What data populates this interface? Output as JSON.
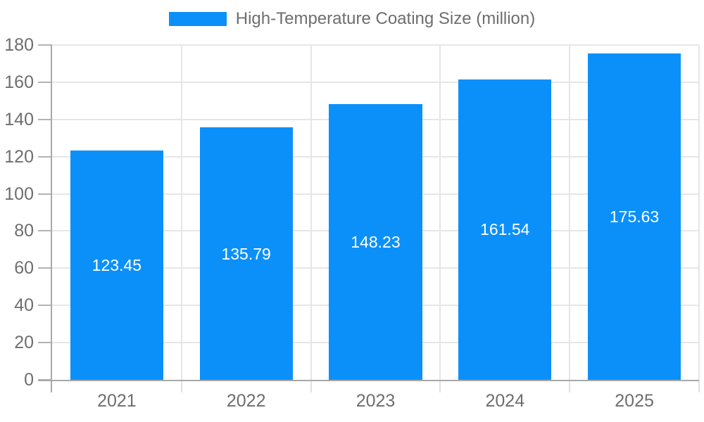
{
  "chart_data": {
    "type": "bar",
    "legend": "High-Temperature Coating Size (million)",
    "legend_position": "top",
    "categories": [
      "2021",
      "2022",
      "2023",
      "2024",
      "2025"
    ],
    "values": [
      123.45,
      135.79,
      148.23,
      161.54,
      175.63
    ],
    "value_labels": [
      "123.45",
      "135.79",
      "148.23",
      "161.54",
      "175.63"
    ],
    "title": "",
    "xlabel": "",
    "ylabel": "",
    "ylim": [
      0,
      180
    ],
    "yticks": [
      0,
      20,
      40,
      60,
      80,
      100,
      120,
      140,
      160,
      180
    ],
    "grid": true,
    "colors": {
      "bar": "#0b90fa",
      "grid": "#e6e6e6",
      "axis": "#a8a8a8",
      "y_tick": "#b3b3b3",
      "x_tick": "#e0e0e0",
      "text": "#6e6e6e",
      "bar_label": "#ffffff",
      "background": "#ffffff"
    }
  }
}
